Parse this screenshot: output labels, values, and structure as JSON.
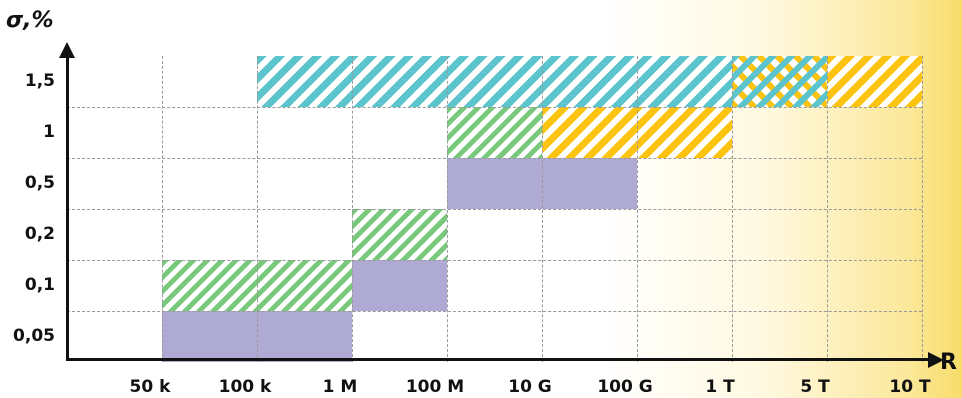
{
  "axes": {
    "y_title": "σ,%",
    "x_title": "R",
    "y_labels": [
      "1,5",
      "1",
      "0,5",
      "0,2",
      "0,1",
      "0,05"
    ],
    "x_labels": [
      "50 k",
      "100 k",
      "1 M",
      "100 M",
      "10 G",
      "100 G",
      "1 T",
      "5 T",
      "10 T"
    ]
  },
  "colors": {
    "purple": "#aeaad3",
    "cyan": "#5cc4cc",
    "green": "#78c97c",
    "yellow": "#fcc410",
    "glow": "#f8dc6a"
  },
  "chart_data": {
    "type": "range-matrix",
    "y_categories": [
      "1,5",
      "1",
      "0,5",
      "0,2",
      "0,1",
      "0,05"
    ],
    "x_categories": [
      "50 k",
      "100 k",
      "1 M",
      "100 M",
      "10 G",
      "100 G",
      "1 T",
      "5 T",
      "10 T"
    ],
    "regions": [
      {
        "style": "solid-purple",
        "row": 5,
        "from": 1,
        "to": 3
      },
      {
        "style": "hatch-green",
        "row": 4,
        "from": 1,
        "to": 3
      },
      {
        "style": "solid-purple",
        "row": 4,
        "from": 3,
        "to": 4
      },
      {
        "style": "hatch-green",
        "row": 3,
        "from": 3,
        "to": 4
      },
      {
        "style": "solid-purple",
        "row": 2,
        "from": 4,
        "to": 6
      },
      {
        "style": "hatch-green",
        "row": 1,
        "from": 4,
        "to": 5
      },
      {
        "style": "hatch-yellow",
        "row": 1,
        "from": 5,
        "to": 7
      },
      {
        "style": "hatch-cyan",
        "row": 0,
        "from": 2,
        "to": 7
      },
      {
        "style": "hatch-cross",
        "row": 0,
        "from": 7,
        "to": 8
      },
      {
        "style": "hatch-yellow",
        "row": 0,
        "from": 8,
        "to": 9
      }
    ]
  }
}
